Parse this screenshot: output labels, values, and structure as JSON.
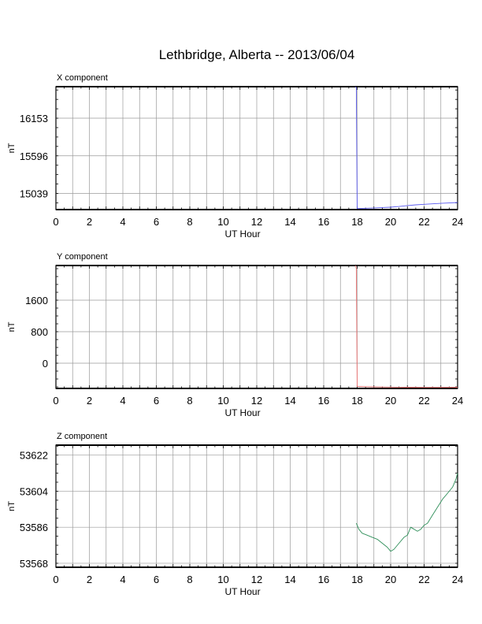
{
  "title": "Lethbridge, Alberta -- 2013/06/04",
  "chart_data": [
    {
      "type": "line",
      "panel_title": "X component",
      "xlabel": "UT Hour",
      "ylabel": "nT",
      "xlim": [
        0,
        24
      ],
      "x_ticks": [
        0,
        2,
        4,
        6,
        8,
        10,
        12,
        14,
        16,
        18,
        20,
        22,
        24
      ],
      "ylim": [
        14800,
        16620
      ],
      "y_ticks": [
        15039,
        15596,
        16153
      ],
      "grid": true,
      "color": "#5a5af0",
      "series": [
        {
          "x": [
            17.9,
            17.95,
            18.0,
            18.5,
            19.0,
            19.5,
            20.0,
            20.5,
            21.0,
            21.5,
            22.0,
            22.5,
            23.0,
            23.5,
            24.0
          ],
          "y": [
            16620,
            16600,
            14815,
            14820,
            14825,
            14830,
            14835,
            14845,
            14860,
            14870,
            14878,
            14885,
            14892,
            14898,
            14905
          ]
        }
      ]
    },
    {
      "type": "line",
      "panel_title": "Y component",
      "xlabel": "UT Hour",
      "ylabel": "nT",
      "xlim": [
        0,
        24
      ],
      "x_ticks": [
        0,
        2,
        4,
        6,
        8,
        10,
        12,
        14,
        16,
        18,
        20,
        22,
        24
      ],
      "ylim": [
        -640,
        2480
      ],
      "y_ticks": [
        0,
        800,
        1600
      ],
      "grid": true,
      "color": "#f07070",
      "series": [
        {
          "x": [
            17.9,
            17.95,
            18.0,
            18.5,
            19.0,
            20.0,
            21.0,
            22.0,
            23.0,
            24.0
          ],
          "y": [
            2480,
            2400,
            -590,
            -595,
            -600,
            -605,
            -610,
            -612,
            -612,
            -610
          ]
        }
      ]
    },
    {
      "type": "line",
      "panel_title": "Z component",
      "xlabel": "UT Hour",
      "ylabel": "nT",
      "xlim": [
        0,
        24
      ],
      "x_ticks": [
        0,
        2,
        4,
        6,
        8,
        10,
        12,
        14,
        16,
        18,
        20,
        22,
        24
      ],
      "ylim": [
        53566,
        53627
      ],
      "y_ticks": [
        53568,
        53586,
        53604,
        53622
      ],
      "grid": true,
      "color": "#2f8f5a",
      "series": [
        {
          "x": [
            17.95,
            18.1,
            18.3,
            18.6,
            18.9,
            19.2,
            19.5,
            19.8,
            20.0,
            20.2,
            20.5,
            20.8,
            21.0,
            21.2,
            21.4,
            21.6,
            21.8,
            22.0,
            22.2,
            22.5,
            22.8,
            23.1,
            23.4,
            23.7,
            23.9,
            24.0
          ],
          "y": [
            53588,
            53585,
            53583,
            53582,
            53581,
            53580,
            53578,
            53576,
            53574,
            53575,
            53578,
            53581,
            53582,
            53586,
            53585,
            53584,
            53585,
            53587,
            53588,
            53592,
            53596,
            53600,
            53603,
            53606,
            53610,
            53613
          ]
        }
      ]
    }
  ]
}
